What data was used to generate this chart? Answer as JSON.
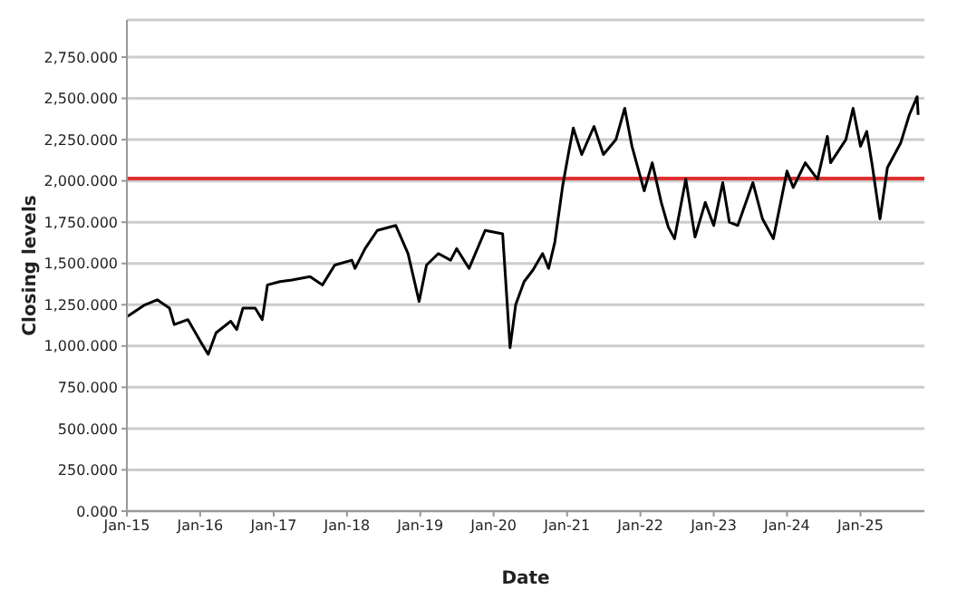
{
  "chart_data": {
    "type": "line",
    "xlabel": "Date",
    "ylabel": "Closing levels",
    "x": [
      "2015-01-05",
      "2015-04-01",
      "2015-06-01",
      "2015-08-01",
      "2015-08-25",
      "2015-11-01",
      "2016-01-01",
      "2016-02-10",
      "2016-03-20",
      "2016-06-01",
      "2016-07-01",
      "2016-08-01",
      "2016-10-01",
      "2016-11-05",
      "2016-12-01",
      "2017-02-01",
      "2017-04-01",
      "2017-07-01",
      "2017-09-01",
      "2017-11-01",
      "2018-01-25",
      "2018-02-10",
      "2018-04-01",
      "2018-06-01",
      "2018-09-01",
      "2018-11-01",
      "2018-12-26",
      "2019-02-01",
      "2019-04-01",
      "2019-06-01",
      "2019-07-01",
      "2019-09-01",
      "2019-11-20",
      "2020-02-15",
      "2020-03-23",
      "2020-04-20",
      "2020-06-01",
      "2020-07-15",
      "2020-09-01",
      "2020-10-01",
      "2020-11-01",
      "2020-12-10",
      "2021-01-10",
      "2021-02-01",
      "2021-03-15",
      "2021-05-15",
      "2021-07-01",
      "2021-09-01",
      "2021-10-15",
      "2021-11-20",
      "2022-01-20",
      "2022-03-01",
      "2022-04-15",
      "2022-05-20",
      "2022-06-20",
      "2022-08-15",
      "2022-09-30",
      "2022-11-20",
      "2023-01-01",
      "2023-02-15",
      "2023-03-20",
      "2023-05-01",
      "2023-07-15",
      "2023-09-01",
      "2023-10-25",
      "2024-01-01",
      "2024-02-01",
      "2024-04-01",
      "2024-06-01",
      "2024-07-20",
      "2024-08-05",
      "2024-10-20",
      "2024-11-25",
      "2025-01-01",
      "2025-02-01",
      "2025-03-01",
      "2025-04-08",
      "2025-05-15",
      "2025-07-20",
      "2025-09-01",
      "2025-10-10",
      "2025-10-15"
    ],
    "series": [
      {
        "color": "#000000",
        "values": [
          1180,
          1250,
          1280,
          1230,
          1130,
          1160,
          1030,
          950,
          1080,
          1150,
          1100,
          1230,
          1230,
          1160,
          1370,
          1390,
          1400,
          1420,
          1370,
          1490,
          1520,
          1470,
          1590,
          1700,
          1730,
          1560,
          1270,
          1490,
          1560,
          1520,
          1590,
          1470,
          1700,
          1680,
          990,
          1250,
          1390,
          1460,
          1560,
          1470,
          1630,
          1970,
          2180,
          2320,
          2160,
          2330,
          2160,
          2250,
          2440,
          2210,
          1940,
          2110,
          1870,
          1720,
          1650,
          2010,
          1660,
          1870,
          1730,
          1990,
          1750,
          1730,
          1990,
          1770,
          1650,
          2060,
          1960,
          2110,
          2010,
          2270,
          2110,
          2250,
          2440,
          2210,
          2300,
          2090,
          1770,
          2080,
          2230,
          2400,
          2510,
          2400
        ]
      }
    ],
    "xlim": [
      "2015-01-01",
      "2025-11-15"
    ],
    "xticks": [
      {
        "value": "2015-01-01",
        "label": "Jan-15"
      },
      {
        "value": "2016-01-01",
        "label": "Jan-16"
      },
      {
        "value": "2017-01-01",
        "label": "Jan-17"
      },
      {
        "value": "2018-01-01",
        "label": "Jan-18"
      },
      {
        "value": "2019-01-01",
        "label": "Jan-19"
      },
      {
        "value": "2020-01-01",
        "label": "Jan-20"
      },
      {
        "value": "2021-01-01",
        "label": "Jan-21"
      },
      {
        "value": "2022-01-01",
        "label": "Jan-22"
      },
      {
        "value": "2023-01-01",
        "label": "Jan-23"
      },
      {
        "value": "2024-01-01",
        "label": "Jan-24"
      },
      {
        "value": "2025-01-01",
        "label": "Jan-25"
      }
    ],
    "ylim": [
      0,
      2975
    ],
    "yticks": [
      {
        "value": 0,
        "label": "0.000"
      },
      {
        "value": 250,
        "label": "250.000"
      },
      {
        "value": 500,
        "label": "500.000"
      },
      {
        "value": 750,
        "label": "750.000"
      },
      {
        "value": 1000,
        "label": "1,000.000"
      },
      {
        "value": 1250,
        "label": "1,250.000"
      },
      {
        "value": 1500,
        "label": "1,500.000"
      },
      {
        "value": 1750,
        "label": "1,750.000"
      },
      {
        "value": 2000,
        "label": "2,000.000"
      },
      {
        "value": 2250,
        "label": "2,250.000"
      },
      {
        "value": 2500,
        "label": "2,500.000"
      },
      {
        "value": 2750,
        "label": "2,750.000"
      }
    ],
    "ref_lines": [
      {
        "axis": "y",
        "value": 2015,
        "label": null,
        "color": "#e03030"
      }
    ],
    "grid": "y",
    "marker": "none",
    "line_style": "solid"
  }
}
